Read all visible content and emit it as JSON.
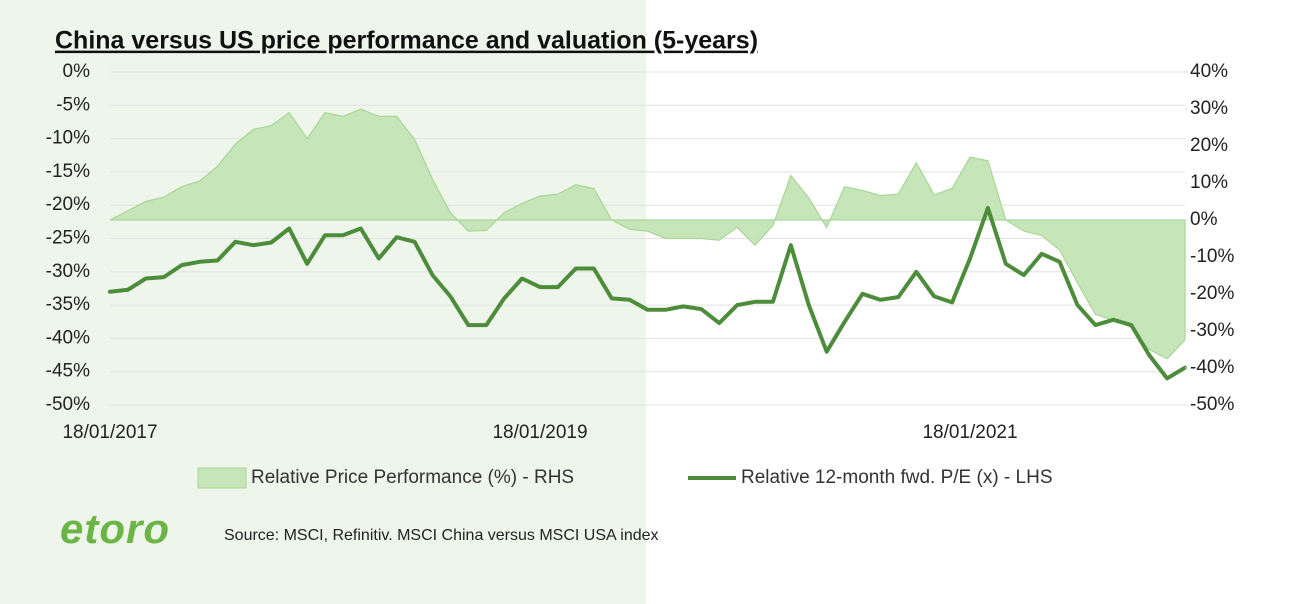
{
  "chart_data": {
    "type": "line",
    "title": "China versus US price performance and valuation (5-years)",
    "categories": [
      "18/01/2017",
      null,
      null,
      null,
      null,
      null,
      null,
      null,
      null,
      null,
      null,
      null,
      null,
      null,
      null,
      null,
      null,
      null,
      null,
      null,
      null,
      null,
      null,
      null,
      "18/01/2019",
      null,
      null,
      null,
      null,
      null,
      null,
      null,
      null,
      null,
      null,
      null,
      null,
      null,
      null,
      null,
      null,
      null,
      null,
      null,
      null,
      null,
      null,
      null,
      "18/01/2021",
      null,
      null,
      null,
      null,
      null,
      null,
      null,
      null,
      null,
      null,
      null,
      null
    ],
    "series": [
      {
        "name": "Relative Price Performance (%) - RHS",
        "type": "area",
        "axis": "y2",
        "color": "#c6e5b8",
        "stroke": "#a9d697",
        "values": [
          0,
          2.5,
          5,
          6.2,
          9,
          10.5,
          14.5,
          20.5,
          24.5,
          25.5,
          29,
          22,
          29,
          28,
          30,
          28,
          28,
          21.8,
          11,
          2,
          -3,
          -2.8,
          2,
          4.5,
          6.5,
          7,
          9.5,
          8.5,
          0,
          -2.5,
          -3,
          -5,
          -5,
          -5,
          -5.5,
          -2,
          -6.8,
          -1.5,
          12,
          6,
          -2,
          9,
          8,
          6.6,
          7,
          15.5,
          6.8,
          8.5,
          17,
          16,
          0,
          -3,
          -4.2,
          -8.1,
          -17,
          -25.5,
          -27,
          -29,
          -35,
          -37.5,
          -32.4
        ]
      },
      {
        "name": "Relative 12-month fwd. P/E (x) - LHS",
        "type": "line",
        "color": "#4c8c3b",
        "values": [
          -33,
          -32.7,
          -31,
          -30.8,
          -29,
          -28.5,
          -28.3,
          -25.5,
          -26,
          -25.6,
          -23.5,
          -28.8,
          -24.5,
          -24.5,
          -23.5,
          -28,
          -24.8,
          -25.5,
          -30.5,
          -33.7,
          -38,
          -38,
          -34,
          -31,
          -32.3,
          -32.3,
          -29.5,
          -29.5,
          -34,
          -34.2,
          -35.7,
          -35.7,
          -35.2,
          -35.6,
          -37.7,
          -35,
          -34.5,
          -34.5,
          -26,
          -35,
          -42,
          -37.5,
          -33.3,
          -34.2,
          -33.8,
          -30,
          -33.7,
          -34.6,
          -28,
          -20.4,
          -28.8,
          -30.5,
          -27.3,
          -28.5,
          -35,
          -38,
          -37.2,
          -38,
          -42.5,
          -46,
          -44.4
        ]
      }
    ],
    "ylim": [
      -50,
      0
    ],
    "yticks": [
      {
        "value": 0,
        "label": "0%"
      },
      {
        "value": -5,
        "label": "-5%"
      },
      {
        "value": -10,
        "label": "-10%"
      },
      {
        "value": -15,
        "label": "-15%"
      },
      {
        "value": -20,
        "label": "-20%"
      },
      {
        "value": -25,
        "label": "-25%"
      },
      {
        "value": -30,
        "label": "-30%"
      },
      {
        "value": -35,
        "label": "-35%"
      },
      {
        "value": -40,
        "label": "-40%"
      },
      {
        "value": -45,
        "label": "-45%"
      },
      {
        "value": -50,
        "label": "-50%"
      }
    ],
    "y2lim": [
      -50,
      40
    ],
    "y2ticks": [
      {
        "value": 40,
        "label": "40%"
      },
      {
        "value": 30,
        "label": "30%"
      },
      {
        "value": 20,
        "label": "20%"
      },
      {
        "value": 10,
        "label": "10%"
      },
      {
        "value": 0,
        "label": "0%"
      },
      {
        "value": -10,
        "label": "-10%"
      },
      {
        "value": -20,
        "label": "-20%"
      },
      {
        "value": -30,
        "label": "-30%"
      },
      {
        "value": -40,
        "label": "-40%"
      },
      {
        "value": -50,
        "label": "-50%"
      }
    ],
    "grid": true,
    "legend": "bottom",
    "source": "Source: MSCI, Refinitiv. MSCI China versus MSCI USA index"
  },
  "logo": "etoro"
}
